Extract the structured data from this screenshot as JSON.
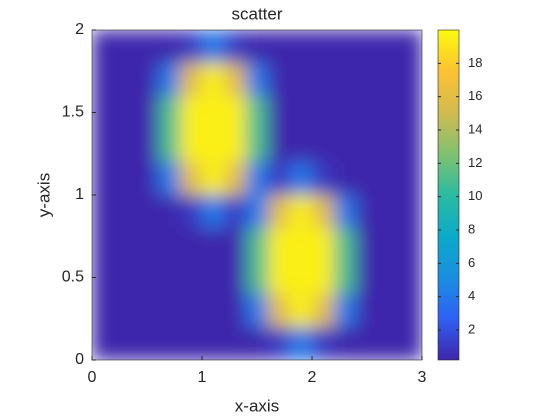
{
  "chart_data": {
    "type": "heatmap",
    "title": "scatter",
    "xlabel": "x-axis",
    "ylabel": "y-axis",
    "x": [
      0.1,
      0.3,
      0.5,
      0.7,
      0.9,
      1.1,
      1.3,
      1.5,
      1.7,
      1.9,
      2.1,
      2.3,
      2.5,
      2.7,
      2.9
    ],
    "y": [
      1.9,
      1.7,
      1.5,
      1.3,
      1.1,
      0.9,
      0.7,
      0.5,
      0.3,
      0.1
    ],
    "z": [
      [
        0.3,
        0.3,
        0.3,
        0.3,
        1,
        4,
        1,
        0.3,
        0.3,
        0.3,
        0.3,
        0.3,
        0.3,
        0.3,
        0.3
      ],
      [
        0.3,
        0.3,
        0.3,
        4,
        16,
        19.5,
        16,
        4,
        0.3,
        0.3,
        0.3,
        0.3,
        0.3,
        0.3,
        0.3
      ],
      [
        0.3,
        0.3,
        0.3,
        11,
        19.5,
        19.5,
        19.5,
        11,
        0.3,
        0.3,
        0.3,
        0.3,
        0.3,
        0.3,
        0.3
      ],
      [
        0.3,
        0.3,
        0.3,
        11,
        19.5,
        19.5,
        19.5,
        11,
        0.3,
        0.3,
        0.3,
        0.3,
        0.3,
        0.3,
        0.3
      ],
      [
        0.3,
        0.3,
        0.3,
        4,
        16,
        19.5,
        16,
        4,
        1,
        4,
        1,
        0.3,
        0.3,
        0.3,
        0.3
      ],
      [
        0.3,
        0.3,
        0.3,
        0.3,
        1,
        4,
        1,
        4,
        16,
        19.5,
        16,
        4,
        0.3,
        0.3,
        0.3
      ],
      [
        0.3,
        0.3,
        0.3,
        0.3,
        0.3,
        0.3,
        0.3,
        11,
        19.5,
        19.5,
        19.5,
        11,
        0.3,
        0.3,
        0.3
      ],
      [
        0.3,
        0.3,
        0.3,
        0.3,
        0.3,
        0.3,
        0.3,
        11,
        19.5,
        19.5,
        19.5,
        11,
        0.3,
        0.3,
        0.3
      ],
      [
        0.3,
        0.3,
        0.3,
        0.3,
        0.3,
        0.3,
        0.3,
        4,
        16,
        19.5,
        16,
        4,
        0.3,
        0.3,
        0.3
      ],
      [
        0.3,
        0.3,
        0.3,
        0.3,
        0.3,
        0.3,
        0.3,
        0.3,
        1,
        4,
        1,
        0.3,
        0.3,
        0.3,
        0.3
      ]
    ],
    "xlim": [
      0,
      3
    ],
    "ylim": [
      0,
      2
    ],
    "xticks": [
      0,
      1,
      2,
      3
    ],
    "yticks": [
      0,
      0.5,
      1,
      1.5,
      2
    ],
    "clim": [
      0.2,
      20
    ],
    "colorbar_ticks": [
      2,
      4,
      6,
      8,
      10,
      12,
      14,
      16,
      18
    ],
    "colormap": [
      "#3e26a8",
      "#2f60f5",
      "#1a8fe0",
      "#0aabc9",
      "#2bbba0",
      "#80c270",
      "#d1bb4f",
      "#fdc232",
      "#f9fb0e"
    ],
    "smooth": true
  }
}
